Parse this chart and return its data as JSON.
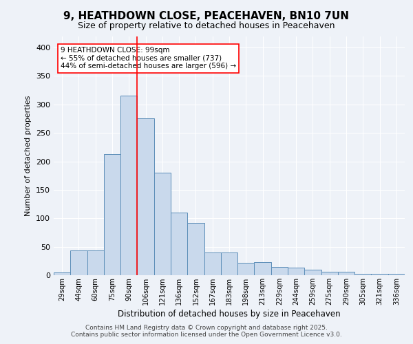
{
  "title_line1": "9, HEATHDOWN CLOSE, PEACEHAVEN, BN10 7UN",
  "title_line2": "Size of property relative to detached houses in Peacehaven",
  "xlabel": "Distribution of detached houses by size in Peacehaven",
  "ylabel": "Number of detached properties",
  "categories": [
    "29sqm",
    "44sqm",
    "60sqm",
    "75sqm",
    "90sqm",
    "106sqm",
    "121sqm",
    "136sqm",
    "152sqm",
    "167sqm",
    "183sqm",
    "198sqm",
    "213sqm",
    "229sqm",
    "244sqm",
    "259sqm",
    "275sqm",
    "290sqm",
    "305sqm",
    "321sqm",
    "336sqm"
  ],
  "bar_values": [
    5,
    44,
    44,
    213,
    315,
    275,
    180,
    110,
    92,
    40,
    40,
    22,
    23,
    14,
    13,
    10,
    6,
    6,
    3,
    2,
    3
  ],
  "bar_color": "#c9d9ec",
  "bar_edge_color": "#5b8db8",
  "vline_color": "red",
  "annotation_text": "9 HEATHDOWN CLOSE: 99sqm\n← 55% of detached houses are smaller (737)\n44% of semi-detached houses are larger (596) →",
  "footer_line1": "Contains HM Land Registry data © Crown copyright and database right 2025.",
  "footer_line2": "Contains public sector information licensed under the Open Government Licence v3.0.",
  "bg_color": "#eef2f8",
  "plot_bg_color": "#eef2f8",
  "grid_color": "#ffffff",
  "ylim": [
    0,
    420
  ],
  "yticks": [
    0,
    50,
    100,
    150,
    200,
    250,
    300,
    350,
    400
  ]
}
